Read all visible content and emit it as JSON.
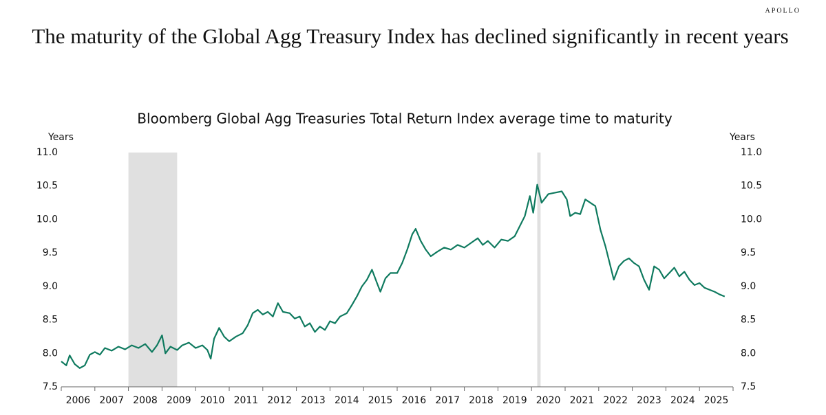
{
  "brand": "APOLLO",
  "chart_data": {
    "type": "line",
    "title": "The maturity of the Global Agg Treasury Index has declined significantly in recent years",
    "subtitle": "Bloomberg Global Agg Treasuries Total Return Index average time to maturity",
    "y_label": "Years",
    "y2_label": "Years",
    "xlim": [
      2006,
      2026
    ],
    "xticks": [
      2006,
      2007,
      2008,
      2009,
      2010,
      2011,
      2012,
      2013,
      2014,
      2015,
      2016,
      2017,
      2018,
      2019,
      2020,
      2021,
      2022,
      2023,
      2024,
      2025
    ],
    "ylim": [
      7.5,
      11
    ],
    "yticks": [
      {
        "value": 7.5,
        "label": "7.5"
      },
      {
        "value": 8,
        "label": "8.0"
      },
      {
        "value": 8.5,
        "label": "8.5"
      },
      {
        "value": 9,
        "label": "9.0"
      },
      {
        "value": 9.5,
        "label": "9.5"
      },
      {
        "value": 10,
        "label": "10.0"
      },
      {
        "value": 10.5,
        "label": "10.5"
      },
      {
        "value": 11,
        "label": "11.0"
      }
    ],
    "y2lim": [
      7.5,
      11
    ],
    "y2ticks": [
      {
        "value": 7.5,
        "label": "7.5"
      },
      {
        "value": 8,
        "label": "8.0"
      },
      {
        "value": 8.5,
        "label": "8.5"
      },
      {
        "value": 9,
        "label": "9.0"
      },
      {
        "value": 9.5,
        "label": "9.5"
      },
      {
        "value": 10,
        "label": "10.0"
      },
      {
        "value": 10.5,
        "label": "10.5"
      },
      {
        "value": 11,
        "label": "11.0"
      }
    ],
    "shaded_ranges": [
      [
        2008.0,
        2009.45
      ],
      [
        2020.17,
        2020.27
      ]
    ],
    "shade_color": "#e0e0e0",
    "x": [
      2006.0,
      2006.15,
      2006.25,
      2006.4,
      2006.55,
      2006.7,
      2006.85,
      2007.0,
      2007.15,
      2007.3,
      2007.5,
      2007.7,
      2007.9,
      2008.1,
      2008.3,
      2008.5,
      2008.7,
      2008.85,
      2009.0,
      2009.1,
      2009.25,
      2009.45,
      2009.6,
      2009.8,
      2010.0,
      2010.2,
      2010.35,
      2010.45,
      2010.55,
      2010.7,
      2010.85,
      2011.0,
      2011.2,
      2011.4,
      2011.55,
      2011.7,
      2011.85,
      2012.0,
      2012.15,
      2012.3,
      2012.45,
      2012.6,
      2012.8,
      2012.95,
      2013.1,
      2013.25,
      2013.4,
      2013.55,
      2013.7,
      2013.85,
      2014.0,
      2014.15,
      2014.3,
      2014.5,
      2014.65,
      2014.8,
      2014.95,
      2015.1,
      2015.25,
      2015.4,
      2015.5,
      2015.65,
      2015.8,
      2016.0,
      2016.15,
      2016.3,
      2016.45,
      2016.55,
      2016.7,
      2016.85,
      2017.0,
      2017.2,
      2017.4,
      2017.6,
      2017.8,
      2018.0,
      2018.2,
      2018.4,
      2018.55,
      2018.7,
      2018.9,
      2019.1,
      2019.3,
      2019.5,
      2019.65,
      2019.8,
      2019.95,
      2020.05,
      2020.17,
      2020.3,
      2020.5,
      2020.7,
      2020.9,
      2021.05,
      2021.15,
      2021.3,
      2021.45,
      2021.6,
      2021.75,
      2021.9,
      2022.05,
      2022.2,
      2022.3,
      2022.45,
      2022.6,
      2022.75,
      2022.9,
      2023.05,
      2023.2,
      2023.35,
      2023.5,
      2023.65,
      2023.8,
      2023.95,
      2024.1,
      2024.25,
      2024.4,
      2024.55,
      2024.7,
      2024.85,
      2025.0,
      2025.15,
      2025.3,
      2025.45,
      2025.6,
      2025.75
    ],
    "series": [
      {
        "color": "#0f7a5f",
        "values": [
          7.88,
          7.82,
          7.97,
          7.84,
          7.78,
          7.82,
          7.98,
          8.02,
          7.98,
          8.08,
          8.04,
          8.1,
          8.06,
          8.12,
          8.08,
          8.14,
          8.02,
          8.12,
          8.27,
          8.0,
          8.1,
          8.05,
          8.12,
          8.16,
          8.08,
          8.12,
          8.05,
          7.92,
          8.22,
          8.38,
          8.25,
          8.18,
          8.25,
          8.3,
          8.42,
          8.6,
          8.65,
          8.58,
          8.62,
          8.55,
          8.75,
          8.62,
          8.6,
          8.52,
          8.55,
          8.4,
          8.45,
          8.32,
          8.4,
          8.35,
          8.48,
          8.45,
          8.55,
          8.6,
          8.72,
          8.85,
          9.0,
          9.1,
          9.25,
          9.05,
          8.92,
          9.12,
          9.2,
          9.2,
          9.35,
          9.55,
          9.78,
          9.86,
          9.68,
          9.55,
          9.45,
          9.52,
          9.58,
          9.55,
          9.62,
          9.58,
          9.65,
          9.72,
          9.62,
          9.68,
          9.58,
          9.7,
          9.68,
          9.75,
          9.9,
          10.05,
          10.35,
          10.1,
          10.52,
          10.25,
          10.38,
          10.4,
          10.42,
          10.3,
          10.05,
          10.1,
          10.08,
          10.3,
          10.25,
          10.2,
          9.85,
          9.6,
          9.4,
          9.1,
          9.3,
          9.38,
          9.42,
          9.35,
          9.3,
          9.1,
          8.95,
          9.3,
          9.25,
          9.12,
          9.2,
          9.28,
          9.15,
          9.22,
          9.1,
          9.02,
          9.05,
          8.98,
          8.95,
          8.92,
          8.88,
          8.85
        ]
      }
    ]
  }
}
